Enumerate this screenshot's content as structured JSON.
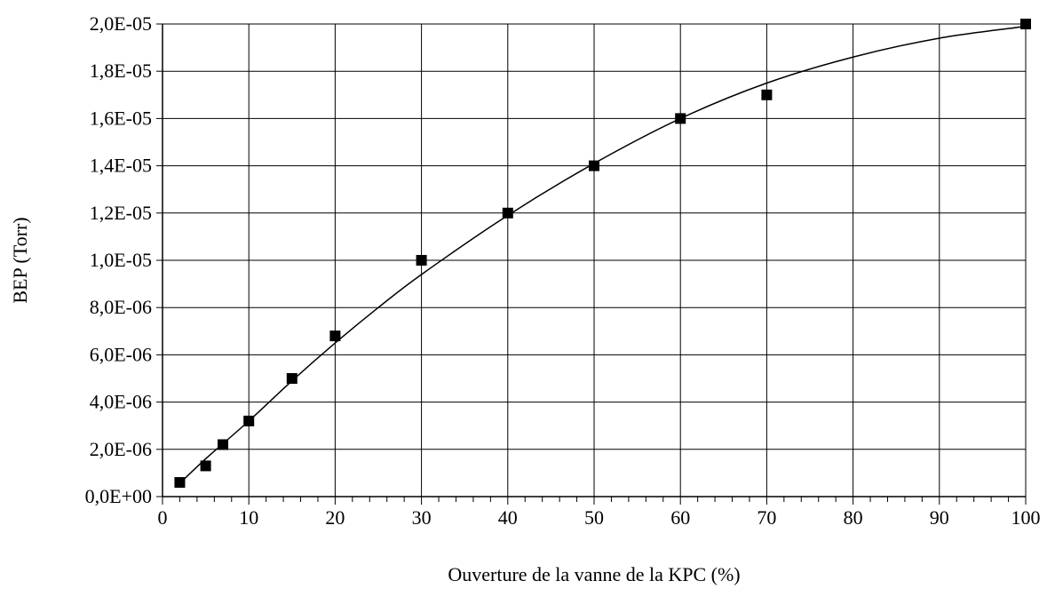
{
  "chart_data": {
    "type": "scatter",
    "title": "",
    "xlabel": "Ouverture de la vanne de la KPC (%)",
    "ylabel": "BEP (Torr)",
    "xlim": [
      0,
      100
    ],
    "ylim": [
      0,
      2e-05
    ],
    "x_ticks": [
      0,
      10,
      20,
      30,
      40,
      50,
      60,
      70,
      80,
      90,
      100
    ],
    "x_tick_labels": [
      "0",
      "10",
      "20",
      "30",
      "40",
      "50",
      "60",
      "70",
      "80",
      "90",
      "100"
    ],
    "x_minor_step": 2,
    "y_ticks": [
      0,
      2e-06,
      4e-06,
      6e-06,
      8e-06,
      1e-05,
      1.2e-05,
      1.4e-05,
      1.6e-05,
      1.8e-05,
      2e-05
    ],
    "y_tick_labels": [
      "0,0E+00",
      "2,0E-06",
      "4,0E-06",
      "6,0E-06",
      "8,0E-06",
      "1,0E-05",
      "1,2E-05",
      "1,4E-05",
      "1,6E-05",
      "1,8E-05",
      "2,0E-05"
    ],
    "grid": true,
    "legend": "none",
    "series": [
      {
        "marker": "square",
        "color": "#000000",
        "x": [
          2,
          5,
          7,
          10,
          15,
          20,
          30,
          40,
          50,
          60,
          70,
          100
        ],
        "y": [
          6e-07,
          1.3e-06,
          2.2e-06,
          3.2e-06,
          5e-06,
          6.8e-06,
          1e-05,
          1.2e-05,
          1.4e-05,
          1.6e-05,
          1.7e-05,
          2e-05
        ]
      }
    ],
    "trendline": {
      "type": "polynomial",
      "color": "#000000",
      "x": [
        2,
        5,
        10,
        15,
        20,
        25,
        30,
        40,
        50,
        60,
        70,
        80,
        90,
        100
      ],
      "y": [
        5.6e-07,
        1.6e-06,
        3.2e-06,
        4.9e-06,
        6.5e-06,
        8e-06,
        9.4e-06,
        1.19e-05,
        1.41e-05,
        1.6e-05,
        1.75e-05,
        1.86e-05,
        1.94e-05,
        1.99e-05
      ]
    }
  }
}
